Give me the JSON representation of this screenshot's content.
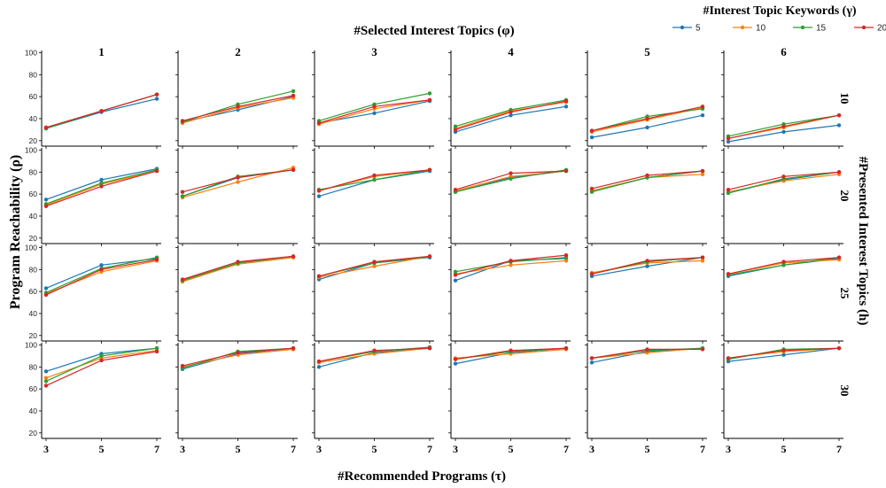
{
  "title": "#Selected Interest Topics (φ)",
  "xlabel": "#Recommended Programs (τ)",
  "ylabel": "Program Reachability (ρ)",
  "row_axis_label": "#Presented Interest Topics (h)",
  "legend": {
    "title": "#Interest Topic Keywords (γ)",
    "placement": "top-right"
  },
  "colors": {
    "5": "#1f77b4",
    "10": "#ff7f0e",
    "15": "#2ca02c",
    "20": "#d62728"
  },
  "chart_data": {
    "type": "line",
    "x": [
      3,
      5,
      7
    ],
    "x_tick_labels": [
      "3",
      "5",
      "7"
    ],
    "ylim": [
      15,
      102
    ],
    "y_ticks": [
      20,
      40,
      60,
      80,
      100
    ],
    "y_tick_labels": [
      "20",
      "40",
      "60",
      "80",
      "100"
    ],
    "grid": false,
    "columns": [
      "1",
      "2",
      "3",
      "4",
      "5",
      "6"
    ],
    "rows": [
      "10",
      "20",
      "25",
      "30"
    ],
    "series_names": [
      "5",
      "10",
      "15",
      "20"
    ],
    "panels": [
      [
        {
          "5": [
            31,
            46,
            58
          ],
          "10": [
            32,
            47,
            62
          ],
          "15": [
            31,
            47,
            62
          ],
          "20": [
            32,
            47,
            62
          ]
        },
        {
          "5": [
            37,
            48,
            60
          ],
          "10": [
            36,
            50,
            59
          ],
          "15": [
            37,
            53,
            65
          ],
          "20": [
            38,
            51,
            61
          ]
        },
        {
          "5": [
            36,
            45,
            56
          ],
          "10": [
            35,
            49,
            57
          ],
          "15": [
            38,
            53,
            63
          ],
          "20": [
            36,
            51,
            57
          ]
        },
        {
          "5": [
            28,
            43,
            51
          ],
          "10": [
            31,
            47,
            55
          ],
          "15": [
            33,
            48,
            57
          ],
          "20": [
            30,
            46,
            56
          ]
        },
        {
          "5": [
            23,
            32,
            43
          ],
          "10": [
            28,
            39,
            50
          ],
          "15": [
            29,
            42,
            49
          ],
          "20": [
            29,
            40,
            51
          ]
        },
        {
          "5": [
            19,
            28,
            34
          ],
          "10": [
            22,
            32,
            43
          ],
          "15": [
            24,
            35,
            43
          ],
          "20": [
            22,
            33,
            43
          ]
        }
      ],
      [
        {
          "5": [
            55,
            73,
            83
          ],
          "10": [
            50,
            69,
            81
          ],
          "15": [
            51,
            70,
            82
          ],
          "20": [
            49,
            67,
            81
          ]
        },
        {
          "5": [
            58,
            75,
            82
          ],
          "10": [
            57,
            71,
            84
          ],
          "15": [
            58,
            76,
            82
          ],
          "20": [
            62,
            75,
            82
          ]
        },
        {
          "5": [
            58,
            73,
            81
          ],
          "10": [
            63,
            76,
            82
          ],
          "15": [
            64,
            73,
            82
          ],
          "20": [
            63,
            77,
            82
          ]
        },
        {
          "5": [
            62,
            75,
            81
          ],
          "10": [
            63,
            76,
            81
          ],
          "15": [
            62,
            74,
            82
          ],
          "20": [
            64,
            79,
            81
          ]
        },
        {
          "5": [
            63,
            75,
            81
          ],
          "10": [
            63,
            75,
            78
          ],
          "15": [
            62,
            75,
            81
          ],
          "20": [
            65,
            77,
            81
          ]
        },
        {
          "5": [
            61,
            73,
            80
          ],
          "10": [
            62,
            72,
            78
          ],
          "15": [
            61,
            74,
            80
          ],
          "20": [
            64,
            76,
            80
          ]
        }
      ],
      [
        {
          "5": [
            63,
            84,
            90
          ],
          "10": [
            58,
            78,
            88
          ],
          "15": [
            59,
            81,
            91
          ],
          "20": [
            57,
            80,
            89
          ]
        },
        {
          "5": [
            70,
            85,
            91
          ],
          "10": [
            69,
            85,
            91
          ],
          "15": [
            70,
            86,
            92
          ],
          "20": [
            71,
            87,
            92
          ]
        },
        {
          "5": [
            71,
            86,
            91
          ],
          "10": [
            73,
            83,
            92
          ],
          "15": [
            74,
            86,
            92
          ],
          "20": [
            74,
            87,
            92
          ]
        },
        {
          "5": [
            70,
            88,
            90
          ],
          "10": [
            76,
            84,
            88
          ],
          "15": [
            78,
            87,
            91
          ],
          "20": [
            75,
            88,
            93
          ]
        },
        {
          "5": [
            74,
            83,
            91
          ],
          "10": [
            77,
            86,
            88
          ],
          "15": [
            76,
            87,
            91
          ],
          "20": [
            76,
            88,
            91
          ]
        },
        {
          "5": [
            74,
            84,
            90
          ],
          "10": [
            76,
            86,
            89
          ],
          "15": [
            75,
            84,
            91
          ],
          "20": [
            76,
            87,
            91
          ]
        }
      ],
      [
        {
          "5": [
            76,
            92,
            97
          ],
          "10": [
            70,
            88,
            95
          ],
          "15": [
            67,
            90,
            97
          ],
          "20": [
            63,
            86,
            94
          ]
        },
        {
          "5": [
            78,
            92,
            97
          ],
          "10": [
            80,
            91,
            96
          ],
          "15": [
            79,
            94,
            97
          ],
          "20": [
            81,
            93,
            97
          ]
        },
        {
          "5": [
            80,
            93,
            97
          ],
          "10": [
            84,
            92,
            97
          ],
          "15": [
            85,
            94,
            98
          ],
          "20": [
            85,
            95,
            97
          ]
        },
        {
          "5": [
            83,
            93,
            97
          ],
          "10": [
            88,
            92,
            96
          ],
          "15": [
            87,
            94,
            97
          ],
          "20": [
            87,
            95,
            97
          ]
        },
        {
          "5": [
            84,
            94,
            97
          ],
          "10": [
            88,
            93,
            97
          ],
          "15": [
            88,
            95,
            97
          ],
          "20": [
            88,
            96,
            96
          ]
        },
        {
          "5": [
            85,
            91,
            97
          ],
          "10": [
            88,
            94,
            97
          ],
          "15": [
            87,
            96,
            97
          ],
          "20": [
            88,
            95,
            97
          ]
        }
      ]
    ]
  }
}
